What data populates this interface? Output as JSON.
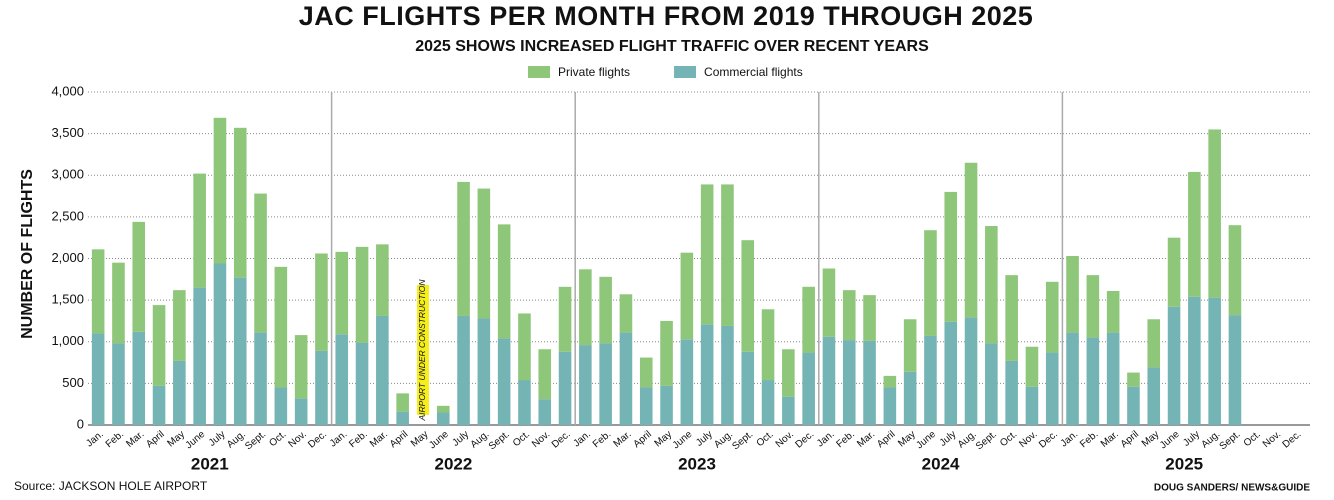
{
  "chart_data": {
    "type": "stacked-bar",
    "title": "JAC FLIGHTS PER MONTH FROM 2019 THROUGH 2025",
    "subtitle": "2025 SHOWS INCREASED FLIGHT TRAFFIC OVER RECENT YEARS",
    "y_label": "NUMBER OF FLIGHTS",
    "annotation": "AIRPORT UNDER CONSTRUCTION",
    "source": "Source: JACKSON HOLE AIRPORT",
    "credit": "DOUG SANDERS/ NEWS&GUIDE",
    "groups": [
      "2021",
      "2022",
      "2023",
      "2024",
      "2025"
    ],
    "categories": [
      "Jan.",
      "Feb.",
      "Mar.",
      "April",
      "May",
      "June",
      "July",
      "Aug.",
      "Sept.",
      "Oct.",
      "Nov.",
      "Dec.",
      "Jan.",
      "Feb.",
      "Mar.",
      "April",
      "May",
      "June",
      "July",
      "Aug.",
      "Sept.",
      "Oct.",
      "Nov.",
      "Dec.",
      "Jan.",
      "Feb.",
      "Mar.",
      "April",
      "May",
      "June",
      "July",
      "Aug.",
      "Sept.",
      "Oct.",
      "Nov.",
      "Dec.",
      "Jan.",
      "Feb.",
      "Mar.",
      "April",
      "May",
      "June",
      "July",
      "Aug.",
      "Sept.",
      "Oct.",
      "Nov.",
      "Dec.",
      "Jan.",
      "Feb.",
      "Mar.",
      "April",
      "May",
      "June",
      "July",
      "Aug.",
      "Sept.",
      "Oct.",
      "Nov.",
      "Dec."
    ],
    "series": [
      {
        "name": "Commercial flights",
        "color": "#74b4b5",
        "values": [
          1100,
          980,
          1120,
          470,
          770,
          1650,
          1940,
          1770,
          1110,
          450,
          320,
          890,
          1090,
          990,
          1310,
          160,
          null,
          150,
          1310,
          1280,
          1040,
          540,
          310,
          880,
          960,
          980,
          1110,
          450,
          470,
          1030,
          1210,
          1190,
          880,
          540,
          340,
          870,
          1060,
          1020,
          1010,
          450,
          640,
          1070,
          1240,
          1290,
          980,
          770,
          460,
          870,
          1110,
          1050,
          1110,
          460,
          690,
          1420,
          1540,
          1530,
          1320,
          null,
          null,
          null
        ]
      },
      {
        "name": "Private flights",
        "color": "#8ec67a",
        "values": [
          1010,
          970,
          1320,
          970,
          850,
          1370,
          1750,
          1800,
          1670,
          1450,
          760,
          1170,
          990,
          1150,
          860,
          220,
          null,
          80,
          1610,
          1560,
          1370,
          800,
          600,
          780,
          910,
          800,
          460,
          360,
          780,
          1040,
          1680,
          1700,
          1340,
          850,
          570,
          790,
          820,
          600,
          550,
          140,
          630,
          1270,
          1560,
          1860,
          1410,
          1030,
          480,
          850,
          920,
          750,
          500,
          170,
          580,
          830,
          1500,
          2020,
          1080,
          null,
          null,
          null
        ]
      }
    ],
    "ylim": [
      0,
      4000
    ],
    "yticks": [
      0,
      500,
      {
        "value": 1000,
        "label": "1,000"
      },
      {
        "value": 1500,
        "label": "1,500"
      },
      {
        "value": 2000,
        "label": "2,000"
      },
      {
        "value": 2500,
        "label": "2,500"
      },
      {
        "value": 3000,
        "label": "3,000"
      },
      {
        "value": 3500,
        "label": "3,500"
      },
      {
        "value": 4000,
        "label": "4,000"
      }
    ],
    "grid": true
  }
}
